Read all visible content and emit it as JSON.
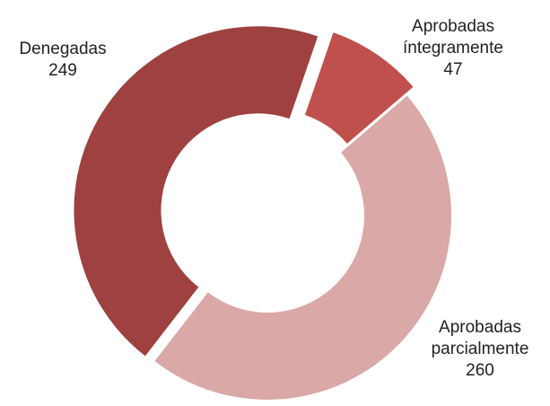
{
  "chart_data": {
    "type": "donut",
    "categories": [
      "Aprobadas íntegramente",
      "Aprobadas parcialmente",
      "Denegadas"
    ],
    "values": [
      47,
      260,
      249
    ],
    "colors": [
      "#c0504d",
      "#d9a8a7",
      "#9e4140"
    ],
    "exploded": [
      true,
      false,
      true
    ]
  }
}
